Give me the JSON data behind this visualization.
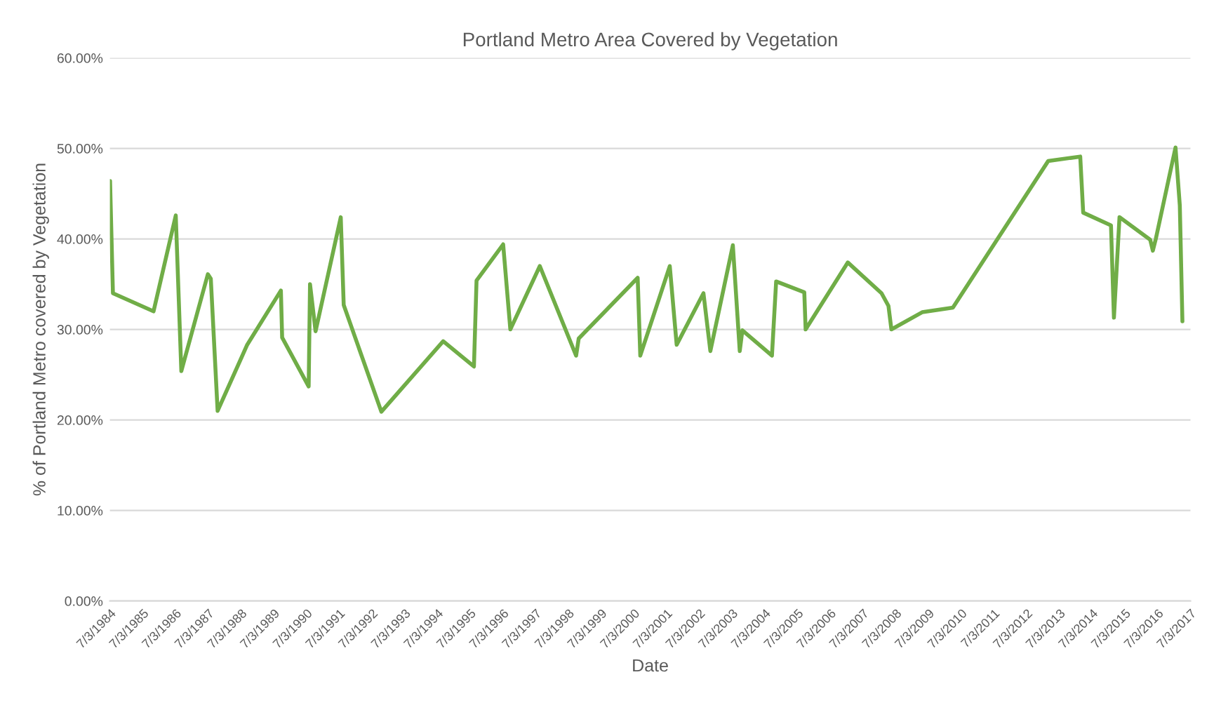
{
  "chart_data": {
    "type": "line",
    "title": "Portland Metro Area Covered by Vegetation",
    "xlabel": "Date",
    "ylabel": "% of Portland Metro covered by Vegetation",
    "x": [
      "1984-07-03",
      "1984-08-04",
      "1985-10-31",
      "1986-07-06",
      "1986-09-06",
      "1987-06-29",
      "1987-08-01",
      "1987-10-16",
      "1988-09-10",
      "1989-09-21",
      "1989-10-05",
      "1990-07-28",
      "1990-08-12",
      "1990-10-13",
      "1991-07-21",
      "1991-08-23",
      "1992-10-16",
      "1994-09-06",
      "1995-08-15",
      "1995-09-13",
      "1996-07-06",
      "1996-09-24",
      "1997-08-19",
      "1998-09-28",
      "1998-10-27",
      "2000-08-15",
      "2000-09-13",
      "2001-08-08",
      "2001-10-24",
      "2002-08-19",
      "2002-11-04",
      "2003-07-13",
      "2003-09-28",
      "2003-10-27",
      "2004-09-21",
      "2004-11-07",
      "2005-09-17",
      "2005-10-02",
      "2007-01-16",
      "2008-01-27",
      "2008-04-13",
      "2008-05-16",
      "2009-04-24",
      "2010-04-02",
      "2013-02-28",
      "2014-02-21",
      "2014-03-26",
      "2015-01-30",
      "2015-03-04",
      "2015-05-05",
      "2016-04-12",
      "2016-05-11",
      "2016-06-13",
      "2017-01-19",
      "2017-03-08",
      "2017-04-06"
    ],
    "series": [
      {
        "color": "#70ad47",
        "values": [
          46.4,
          34.0,
          32.0,
          42.6,
          25.4,
          36.1,
          35.6,
          21.0,
          28.3,
          34.3,
          29.1,
          23.7,
          35.0,
          29.8,
          42.4,
          32.7,
          20.9,
          28.7,
          25.9,
          35.4,
          39.4,
          30.0,
          37.0,
          27.1,
          29.0,
          35.7,
          27.1,
          37.0,
          28.3,
          34.0,
          27.6,
          39.3,
          27.6,
          29.9,
          27.1,
          35.3,
          34.1,
          30.0,
          37.4,
          34.0,
          32.6,
          30.0,
          31.9,
          32.4,
          48.6,
          49.1,
          42.9,
          41.5,
          31.3,
          42.4,
          39.9,
          38.7,
          40.0,
          50.1,
          43.7,
          30.9
        ]
      }
    ],
    "xlim": [
      "1984-07-01",
      "2017-07-05"
    ],
    "xticks": [
      {
        "value": "1984-07-03",
        "label": "7/3/1984"
      },
      {
        "value": "1985-07-03",
        "label": "7/3/1985"
      },
      {
        "value": "1986-07-03",
        "label": "7/3/1986"
      },
      {
        "value": "1987-07-03",
        "label": "7/3/1987"
      },
      {
        "value": "1988-07-03",
        "label": "7/3/1988"
      },
      {
        "value": "1989-07-03",
        "label": "7/3/1989"
      },
      {
        "value": "1990-07-03",
        "label": "7/3/1990"
      },
      {
        "value": "1991-07-03",
        "label": "7/3/1991"
      },
      {
        "value": "1992-07-03",
        "label": "7/3/1992"
      },
      {
        "value": "1993-07-03",
        "label": "7/3/1993"
      },
      {
        "value": "1994-07-03",
        "label": "7/3/1994"
      },
      {
        "value": "1995-07-03",
        "label": "7/3/1995"
      },
      {
        "value": "1996-07-03",
        "label": "7/3/1996"
      },
      {
        "value": "1997-07-03",
        "label": "7/3/1997"
      },
      {
        "value": "1998-07-03",
        "label": "7/3/1998"
      },
      {
        "value": "1999-07-03",
        "label": "7/3/1999"
      },
      {
        "value": "2000-07-03",
        "label": "7/3/2000"
      },
      {
        "value": "2001-07-03",
        "label": "7/3/2001"
      },
      {
        "value": "2002-07-03",
        "label": "7/3/2002"
      },
      {
        "value": "2003-07-03",
        "label": "7/3/2003"
      },
      {
        "value": "2004-07-03",
        "label": "7/3/2004"
      },
      {
        "value": "2005-07-03",
        "label": "7/3/2005"
      },
      {
        "value": "2006-07-03",
        "label": "7/3/2006"
      },
      {
        "value": "2007-07-03",
        "label": "7/3/2007"
      },
      {
        "value": "2008-07-03",
        "label": "7/3/2008"
      },
      {
        "value": "2009-07-03",
        "label": "7/3/2009"
      },
      {
        "value": "2010-07-03",
        "label": "7/3/2010"
      },
      {
        "value": "2011-07-03",
        "label": "7/3/2011"
      },
      {
        "value": "2012-07-03",
        "label": "7/3/2012"
      },
      {
        "value": "2013-07-03",
        "label": "7/3/2013"
      },
      {
        "value": "2014-07-03",
        "label": "7/3/2014"
      },
      {
        "value": "2015-07-03",
        "label": "7/3/2015"
      },
      {
        "value": "2016-07-03",
        "label": "7/3/2016"
      },
      {
        "value": "2017-07-03",
        "label": "7/3/2017"
      }
    ],
    "ylim": [
      0,
      60
    ],
    "yticks": [
      {
        "value": 0,
        "label": "0.00%"
      },
      {
        "value": 10,
        "label": "10.00%"
      },
      {
        "value": 20,
        "label": "20.00%"
      },
      {
        "value": 30,
        "label": "30.00%"
      },
      {
        "value": 40,
        "label": "40.00%"
      },
      {
        "value": 50,
        "label": "50.00%"
      },
      {
        "value": 60,
        "label": "60.00%"
      }
    ],
    "grid": "y",
    "marker": "none",
    "line_style": "solid"
  }
}
